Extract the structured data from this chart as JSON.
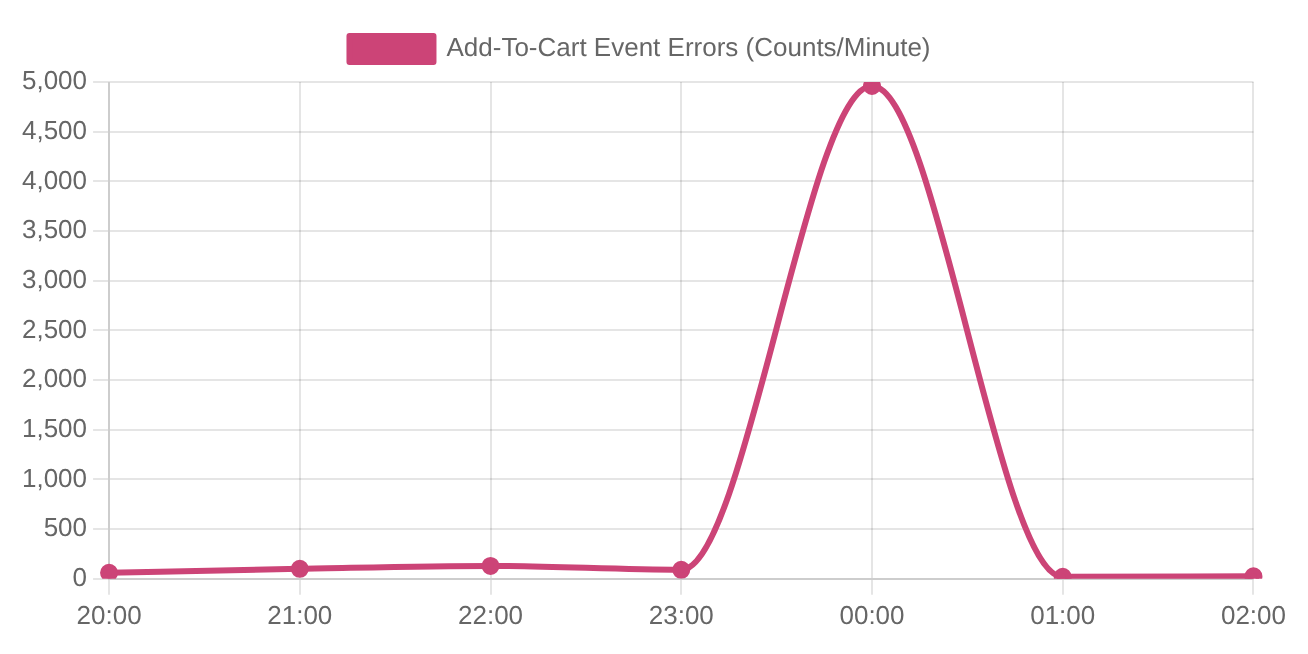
{
  "chart_data": {
    "type": "line",
    "categories": [
      "20:00",
      "21:00",
      "22:00",
      "23:00",
      "00:00",
      "01:00",
      "02:00"
    ],
    "series": [
      {
        "name": "Add-To-Cart Event Errors (Counts/Minute)",
        "color": "#cc4477",
        "values": [
          60,
          100,
          130,
          90,
          4960,
          20,
          25
        ]
      }
    ],
    "ylim": [
      0,
      5000
    ],
    "yticks": [
      0,
      500,
      {
        "value": 1000,
        "label": "1,000"
      },
      {
        "value": 1500,
        "label": "1,500"
      },
      {
        "value": 2000,
        "label": "2,000"
      },
      {
        "value": 2500,
        "label": "2,500"
      },
      {
        "value": 3000,
        "label": "3,000"
      },
      {
        "value": 3500,
        "label": "3,500"
      },
      {
        "value": 4000,
        "label": "4,000"
      },
      {
        "value": 4500,
        "label": "4,500"
      },
      {
        "value": 5000,
        "label": "5,000"
      }
    ],
    "grid": true,
    "legend": "top",
    "marker": "circle",
    "line_style": "solid"
  }
}
